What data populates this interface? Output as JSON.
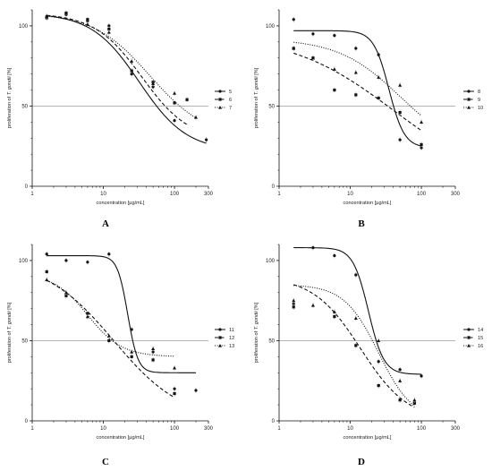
{
  "chart_data": [
    {
      "panel": "A",
      "type": "scatter",
      "xscale": "log",
      "xlim": [
        1,
        300
      ],
      "ylim": [
        0,
        110
      ],
      "xticks": [
        1,
        10,
        100,
        300
      ],
      "xtick_labels": [
        "1",
        "10",
        "100",
        "300"
      ],
      "yticks": [
        0,
        50,
        100
      ],
      "ytick_labels": [
        "0",
        "50",
        "100"
      ],
      "xlabel": "concentration [µg/mL]",
      "ylabel_parts": [
        "proliferation of ",
        "T. gondii",
        " [%]"
      ],
      "reference_line": 50,
      "series": [
        {
          "name": "5",
          "marker": "circle",
          "line": "solid",
          "points": [
            [
              1.6,
              106
            ],
            [
              3,
              107
            ],
            [
              6,
              103
            ],
            [
              12,
              100
            ],
            [
              25,
              70
            ],
            [
              50,
              62
            ],
            [
              100,
              41
            ],
            [
              280,
              29
            ]
          ],
          "curve": {
            "top": 108,
            "bottom": 22,
            "ec50": 32,
            "hill": 1.3
          }
        },
        {
          "name": "6",
          "marker": "square",
          "line": "dashed",
          "points": [
            [
              1.6,
              105
            ],
            [
              3,
              108
            ],
            [
              6,
              104
            ],
            [
              12,
              98
            ],
            [
              25,
              72
            ],
            [
              50,
              65
            ],
            [
              100,
              52
            ],
            [
              150,
              54
            ]
          ],
          "curve": {
            "top": 108,
            "bottom": 28,
            "ec50": 35,
            "hill": 1.3
          }
        },
        {
          "name": "7",
          "marker": "triangle",
          "line": "dotted",
          "points": [
            [
              1.6,
              106
            ],
            [
              3,
              108
            ],
            [
              6,
              101
            ],
            [
              12,
              96
            ],
            [
              25,
              78
            ],
            [
              50,
              64
            ],
            [
              100,
              58
            ],
            [
              200,
              43
            ]
          ],
          "curve": {
            "top": 108,
            "bottom": 30,
            "ec50": 45,
            "hill": 1.1
          }
        }
      ]
    },
    {
      "panel": "B",
      "type": "scatter",
      "xscale": "log",
      "xlim": [
        1,
        300
      ],
      "ylim": [
        0,
        110
      ],
      "xticks": [
        1,
        10,
        100,
        300
      ],
      "xtick_labels": [
        "1",
        "10",
        "100",
        "300"
      ],
      "yticks": [
        0,
        50,
        100
      ],
      "ytick_labels": [
        "0",
        "50",
        "100"
      ],
      "xlabel": "concentration [µg/mL]",
      "ylabel_parts": [
        "proliferation of ",
        "T. gondii",
        " [%]"
      ],
      "reference_line": 50,
      "series": [
        {
          "name": "8",
          "marker": "circle",
          "line": "solid",
          "points": [
            [
              1.6,
              104
            ],
            [
              3,
              95
            ],
            [
              6,
              94
            ],
            [
              12,
              86
            ],
            [
              25,
              82
            ],
            [
              50,
              29
            ],
            [
              100,
              24
            ]
          ],
          "curve": {
            "top": 97,
            "bottom": 24,
            "ec50": 35,
            "hill": 4.0
          }
        },
        {
          "name": "9",
          "marker": "square",
          "line": "dashed",
          "points": [
            [
              1.6,
              86
            ],
            [
              3,
              80
            ],
            [
              6,
              60
            ],
            [
              12,
              57
            ],
            [
              25,
              55
            ],
            [
              50,
              46
            ],
            [
              100,
              26
            ]
          ],
          "curve": {
            "top": 95,
            "bottom": 0,
            "ec50": 40,
            "hill": 0.6
          }
        },
        {
          "name": "10",
          "marker": "triangle",
          "line": "dotted",
          "points": [
            [
              1.6,
              86
            ],
            [
              3,
              80
            ],
            [
              6,
              73
            ],
            [
              12,
              71
            ],
            [
              25,
              68
            ],
            [
              50,
              63
            ],
            [
              100,
              40
            ]
          ],
          "curve": {
            "top": 92,
            "bottom": 20,
            "ec50": 50,
            "hill": 1.0
          }
        }
      ]
    },
    {
      "panel": "C",
      "type": "scatter",
      "xscale": "log",
      "xlim": [
        1,
        300
      ],
      "ylim": [
        0,
        110
      ],
      "xticks": [
        1,
        10,
        100,
        300
      ],
      "xtick_labels": [
        "1",
        "10",
        "100",
        "300"
      ],
      "yticks": [
        0,
        50,
        100
      ],
      "ytick_labels": [
        "0",
        "50",
        "100"
      ],
      "xlabel": "concentration [µg/mL]",
      "ylabel_parts": [
        "proliferation of ",
        "T. gondii",
        " [%]"
      ],
      "reference_line": 50,
      "series": [
        {
          "name": "11",
          "marker": "circle",
          "line": "solid",
          "points": [
            [
              1.6,
              104
            ],
            [
              3,
              100
            ],
            [
              6,
              99
            ],
            [
              12,
              104
            ],
            [
              25,
              57
            ],
            [
              50,
              43
            ],
            [
              100,
              20
            ],
            [
              200,
              19
            ]
          ],
          "curve": {
            "top": 103,
            "bottom": 30,
            "ec50": 22,
            "hill": 6.0
          }
        },
        {
          "name": "12",
          "marker": "square",
          "line": "dashed",
          "points": [
            [
              1.6,
              93
            ],
            [
              3,
              78
            ],
            [
              6,
              67
            ],
            [
              12,
              50
            ],
            [
              25,
              40
            ],
            [
              50,
              38
            ],
            [
              100,
              17
            ]
          ],
          "curve": {
            "top": 100,
            "bottom": 0,
            "ec50": 14,
            "hill": 0.9
          }
        },
        {
          "name": "13",
          "marker": "triangle",
          "line": "dotted",
          "points": [
            [
              1.6,
              88
            ],
            [
              3,
              80
            ],
            [
              6,
              65
            ],
            [
              12,
              53
            ],
            [
              25,
              43
            ],
            [
              50,
              45
            ],
            [
              100,
              33
            ]
          ],
          "curve": {
            "top": 92,
            "bottom": 40,
            "ec50": 6,
            "hill": 1.8
          }
        }
      ]
    },
    {
      "panel": "D",
      "type": "scatter",
      "xscale": "log",
      "xlim": [
        1,
        300
      ],
      "ylim": [
        0,
        110
      ],
      "xticks": [
        1,
        10,
        100,
        300
      ],
      "xtick_labels": [
        "1",
        "10",
        "100",
        "300"
      ],
      "yticks": [
        0,
        50,
        100
      ],
      "ytick_labels": [
        "0",
        "50",
        "100"
      ],
      "xlabel": "concentration [µg/mL]",
      "ylabel_parts": [
        "proliferation of ",
        "T. gondii",
        " [%]"
      ],
      "reference_line": 50,
      "series": [
        {
          "name": "14",
          "marker": "circle",
          "line": "solid",
          "points": [
            [
              1.6,
              73
            ],
            [
              3,
              108
            ],
            [
              6,
              103
            ],
            [
              12,
              91
            ],
            [
              25,
              37
            ],
            [
              50,
              32
            ],
            [
              100,
              28
            ]
          ],
          "curve": {
            "top": 108,
            "bottom": 29,
            "ec50": 18,
            "hill": 4.0
          }
        },
        {
          "name": "15",
          "marker": "square",
          "line": "dashed",
          "points": [
            [
              1.6,
              71
            ],
            [
              6,
              65
            ],
            [
              12,
              47
            ],
            [
              25,
              22
            ],
            [
              50,
              13
            ],
            [
              80,
              11
            ]
          ],
          "curve": {
            "top": 90,
            "bottom": 0,
            "ec50": 14,
            "hill": 1.3
          }
        },
        {
          "name": "16",
          "marker": "triangle",
          "line": "dotted",
          "points": [
            [
              1.6,
              75
            ],
            [
              3,
              72
            ],
            [
              6,
              68
            ],
            [
              12,
              64
            ],
            [
              25,
              50
            ],
            [
              50,
              25
            ],
            [
              80,
              13
            ]
          ],
          "curve": {
            "top": 85,
            "bottom": 0,
            "ec50": 25,
            "hill": 1.8
          }
        }
      ]
    }
  ]
}
